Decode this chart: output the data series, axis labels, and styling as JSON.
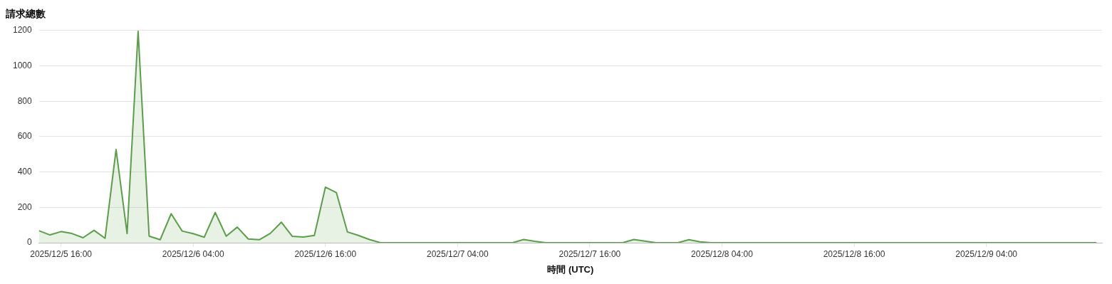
{
  "chart_data": {
    "type": "area",
    "title": "請求總數",
    "xlabel": "時間 (UTC)",
    "x": [
      "2025-12-05T14:00",
      "2025-12-05T15:00",
      "2025-12-05T16:00",
      "2025-12-05T17:00",
      "2025-12-05T18:00",
      "2025-12-05T19:00",
      "2025-12-05T20:00",
      "2025-12-05T21:00",
      "2025-12-05T22:00",
      "2025-12-05T23:00",
      "2025-12-06T00:00",
      "2025-12-06T01:00",
      "2025-12-06T02:00",
      "2025-12-06T03:00",
      "2025-12-06T04:00",
      "2025-12-06T05:00",
      "2025-12-06T06:00",
      "2025-12-06T07:00",
      "2025-12-06T08:00",
      "2025-12-06T09:00",
      "2025-12-06T10:00",
      "2025-12-06T11:00",
      "2025-12-06T12:00",
      "2025-12-06T13:00",
      "2025-12-06T14:00",
      "2025-12-06T15:00",
      "2025-12-06T16:00",
      "2025-12-06T17:00",
      "2025-12-06T18:00",
      "2025-12-06T19:00",
      "2025-12-06T20:00",
      "2025-12-06T21:00",
      "2025-12-06T22:00",
      "2025-12-06T23:00",
      "2025-12-07T00:00",
      "2025-12-07T01:00",
      "2025-12-07T02:00",
      "2025-12-07T03:00",
      "2025-12-07T04:00",
      "2025-12-07T05:00",
      "2025-12-07T06:00",
      "2025-12-07T07:00",
      "2025-12-07T08:00",
      "2025-12-07T09:00",
      "2025-12-07T10:00",
      "2025-12-07T11:00",
      "2025-12-07T12:00",
      "2025-12-07T13:00",
      "2025-12-07T14:00",
      "2025-12-07T15:00",
      "2025-12-07T16:00",
      "2025-12-07T17:00",
      "2025-12-07T18:00",
      "2025-12-07T19:00",
      "2025-12-07T20:00",
      "2025-12-07T21:00",
      "2025-12-07T22:00",
      "2025-12-07T23:00",
      "2025-12-08T00:00",
      "2025-12-08T01:00",
      "2025-12-08T02:00",
      "2025-12-08T03:00",
      "2025-12-08T04:00",
      "2025-12-08T05:00",
      "2025-12-08T06:00",
      "2025-12-08T07:00",
      "2025-12-08T08:00",
      "2025-12-08T09:00",
      "2025-12-08T10:00",
      "2025-12-08T11:00",
      "2025-12-08T12:00",
      "2025-12-08T13:00",
      "2025-12-08T14:00",
      "2025-12-08T15:00",
      "2025-12-08T16:00",
      "2025-12-08T17:00",
      "2025-12-08T18:00",
      "2025-12-08T19:00",
      "2025-12-08T20:00",
      "2025-12-08T21:00",
      "2025-12-08T22:00",
      "2025-12-08T23:00",
      "2025-12-09T00:00",
      "2025-12-09T01:00",
      "2025-12-09T02:00",
      "2025-12-09T03:00",
      "2025-12-09T04:00",
      "2025-12-09T05:00",
      "2025-12-09T06:00",
      "2025-12-09T07:00",
      "2025-12-09T08:00",
      "2025-12-09T09:00",
      "2025-12-09T10:00",
      "2025-12-09T11:00",
      "2025-12-09T12:00",
      "2025-12-09T13:00",
      "2025-12-09T14:00"
    ],
    "series": [
      {
        "color": "#5b9e4a",
        "values": [
          68,
          44,
          63,
          52,
          28,
          70,
          25,
          527,
          52,
          1195,
          37,
          17,
          164,
          66,
          51,
          31,
          171,
          37,
          88,
          21,
          17,
          53,
          116,
          36,
          32,
          41,
          314,
          283,
          61,
          41,
          18,
          0,
          0,
          0,
          0,
          0,
          0,
          0,
          0,
          0,
          0,
          0,
          0,
          0,
          18,
          8,
          0,
          0,
          0,
          0,
          0,
          0,
          0,
          0,
          18,
          9,
          0,
          0,
          0,
          17,
          5,
          0,
          0,
          0,
          0,
          0,
          0,
          0,
          0,
          0,
          0,
          0,
          0,
          0,
          0,
          0,
          0,
          0,
          0,
          0,
          0,
          0,
          0,
          0,
          0,
          0,
          0,
          0,
          0,
          0,
          0,
          0,
          0,
          0,
          0,
          0,
          0
        ]
      }
    ],
    "xlim": [
      "2025-12-05T14:00",
      "2025-12-09T14:30"
    ],
    "xticks": [
      {
        "value": "2025-12-05T16:00",
        "label": "2025/12/5 16:00"
      },
      {
        "value": "2025-12-06T04:00",
        "label": "2025/12/6 04:00"
      },
      {
        "value": "2025-12-06T16:00",
        "label": "2025/12/6 16:00"
      },
      {
        "value": "2025-12-07T04:00",
        "label": "2025/12/7 04:00"
      },
      {
        "value": "2025-12-07T16:00",
        "label": "2025/12/7 16:00"
      },
      {
        "value": "2025-12-08T04:00",
        "label": "2025/12/8 04:00"
      },
      {
        "value": "2025-12-08T16:00",
        "label": "2025/12/8 16:00"
      },
      {
        "value": "2025-12-09T04:00",
        "label": "2025/12/9 04:00"
      }
    ],
    "ylim": [
      0,
      1200
    ],
    "yticks": [
      0,
      200,
      400,
      600,
      800,
      1000,
      1200
    ],
    "grid": "y",
    "legend": false
  }
}
